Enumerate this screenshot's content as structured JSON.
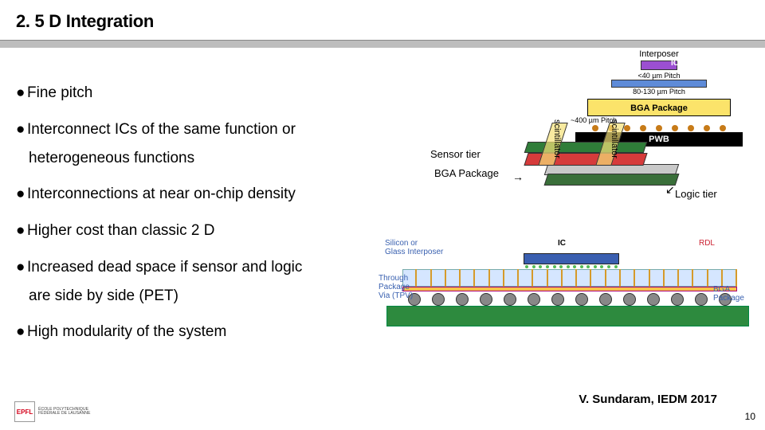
{
  "title": "2. 5 D Integration",
  "bullets": [
    {
      "text": "Fine pitch"
    },
    {
      "text": "Interconnect ICs of the same function or",
      "sub": "heterogeneous functions"
    },
    {
      "text": "Interconnections at near on-chip density"
    },
    {
      "text": "Higher cost than classic 2 D"
    },
    {
      "text": "Increased dead space if sensor and logic",
      "sub": "are side by side (PET)"
    },
    {
      "text": "High modularity of the system"
    }
  ],
  "interposer_fig": {
    "caption_top": "Interposer",
    "label_ic": "IC",
    "pitch_top": "<40 µm Pitch",
    "label_int": "Interposer",
    "pitch_mid": "80-130 µm Pitch",
    "bga_label": "BGA Package",
    "pwb_label": "PWB",
    "pitch_bot": "~400 µm Pitch",
    "colors": {
      "ic": "#9b4fd1",
      "interposer": "#5e8bd8",
      "bga": "#fbe36a",
      "pwb": "#000000",
      "ball": "#c77b18"
    }
  },
  "tier_fig": {
    "sensor_label": "Sensor tier",
    "bga_label": "BGA Package",
    "logic_label": "Logic tier",
    "scint_label": "scintillator",
    "colors": {
      "sensor_top": "#2f7d39",
      "sensor_body": "#d63b3b",
      "bga_top": "#c9c9c9",
      "bga_body": "#3a6f3a",
      "scint": "rgba(245,225,120,0.7)"
    }
  },
  "xsec_fig": {
    "label_interposer": "Silicon or\nGlass Interposer",
    "label_ic": "IC",
    "label_rdl": "RDL",
    "label_tpv": "Through\nPackage\nVia (TPV)",
    "label_bga": "BGA\nPackage",
    "colors": {
      "ic": "#3a5fb0",
      "interposer": "#d5e6ff",
      "rdl": "#f6c24a",
      "ball": "#888888",
      "board": "#2d8a3e",
      "via": "#d69a2a"
    },
    "ball_count": 14,
    "bump_count": 14,
    "via_count": 23
  },
  "citation": "V. Sundaram, IEDM 2017",
  "footer": {
    "logo_mark": "EPFL",
    "logo_lines": "ÉCOLE POLYTECHNIQUE\nFÉDÉRALE DE LAUSANNE",
    "page": "10"
  }
}
